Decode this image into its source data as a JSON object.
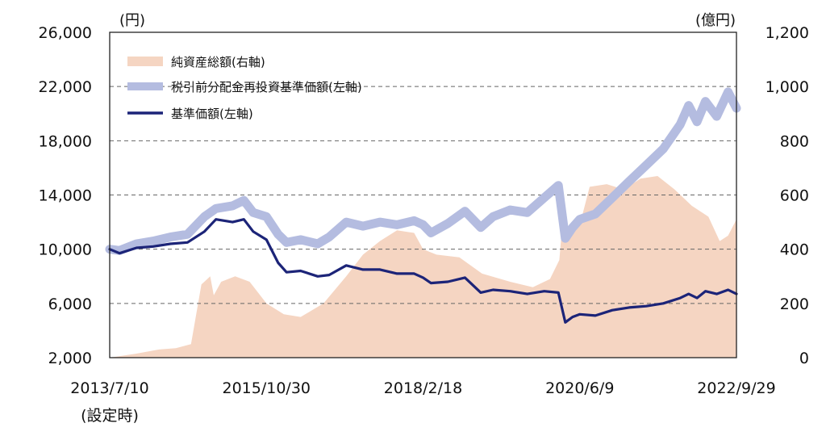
{
  "chart_data": {
    "type": "line",
    "title": "",
    "left_axis": {
      "unit": "(円)",
      "ylim": [
        2000,
        26000
      ],
      "ticks": [
        "26,000",
        "22,000",
        "18,000",
        "14,000",
        "10,000",
        "6,000",
        "2,000"
      ],
      "tick_values": [
        26000,
        22000,
        18000,
        14000,
        10000,
        6000,
        2000
      ]
    },
    "right_axis": {
      "unit": "(億円)",
      "ylim": [
        0,
        1200
      ],
      "ticks": [
        "1,200",
        "1,000",
        "800",
        "600",
        "400",
        "200",
        "0"
      ],
      "tick_values": [
        1200,
        1000,
        800,
        600,
        400,
        200,
        0
      ]
    },
    "x_axis": {
      "range": [
        "2013-07-10",
        "2022-09-29"
      ],
      "ticks": [
        {
          "date": "2013-07-10",
          "label": "2013/7/10",
          "sublabel": "(設定時)"
        },
        {
          "date": "2015-10-30",
          "label": "2015/10/30",
          "sublabel": ""
        },
        {
          "date": "2018-02-18",
          "label": "2018/2/18",
          "sublabel": ""
        },
        {
          "date": "2020-06-09",
          "label": "2020/6/9",
          "sublabel": ""
        },
        {
          "date": "2022-09-29",
          "label": "2022/9/29",
          "sublabel": ""
        }
      ]
    },
    "grid": "horizontal-dashed",
    "legend_placement": "top-left",
    "series": [
      {
        "name": "純資産総額(右軸)",
        "type": "area",
        "axis": "right",
        "color": "#f5d5c2",
        "points": [
          [
            "2013-07-10",
            0
          ],
          [
            "2013-12-01",
            15
          ],
          [
            "2014-04-01",
            30
          ],
          [
            "2014-07-01",
            35
          ],
          [
            "2014-09-20",
            50
          ],
          [
            "2014-11-15",
            270
          ],
          [
            "2015-01-01",
            300
          ],
          [
            "2015-01-20",
            230
          ],
          [
            "2015-03-01",
            280
          ],
          [
            "2015-05-15",
            300
          ],
          [
            "2015-08-01",
            280
          ],
          [
            "2015-10-30",
            200
          ],
          [
            "2016-02-01",
            160
          ],
          [
            "2016-05-01",
            150
          ],
          [
            "2016-09-01",
            200
          ],
          [
            "2017-01-01",
            300
          ],
          [
            "2017-04-01",
            380
          ],
          [
            "2017-07-01",
            430
          ],
          [
            "2017-10-01",
            470
          ],
          [
            "2018-01-01",
            460
          ],
          [
            "2018-02-18",
            400
          ],
          [
            "2018-05-01",
            380
          ],
          [
            "2018-09-01",
            370
          ],
          [
            "2019-01-01",
            310
          ],
          [
            "2019-06-01",
            280
          ],
          [
            "2019-10-01",
            260
          ],
          [
            "2020-01-01",
            290
          ],
          [
            "2020-02-20",
            360
          ],
          [
            "2020-03-15",
            550
          ],
          [
            "2020-04-01",
            480
          ],
          [
            "2020-05-15",
            470
          ],
          [
            "2020-06-09",
            490
          ],
          [
            "2020-08-01",
            630
          ],
          [
            "2020-11-01",
            640
          ],
          [
            "2021-02-01",
            620
          ],
          [
            "2021-05-01",
            660
          ],
          [
            "2021-08-01",
            670
          ],
          [
            "2021-11-01",
            620
          ],
          [
            "2022-02-01",
            560
          ],
          [
            "2022-05-01",
            520
          ],
          [
            "2022-07-01",
            430
          ],
          [
            "2022-08-15",
            450
          ],
          [
            "2022-09-29",
            510
          ]
        ]
      },
      {
        "name": "税引前分配金再投資基準価額(左軸)",
        "type": "line",
        "axis": "left",
        "color": "#b4bce0",
        "points": [
          [
            "2013-07-10",
            10000
          ],
          [
            "2013-09-01",
            9900
          ],
          [
            "2013-12-01",
            10400
          ],
          [
            "2014-03-01",
            10600
          ],
          [
            "2014-06-01",
            10900
          ],
          [
            "2014-09-01",
            11100
          ],
          [
            "2014-12-01",
            12400
          ],
          [
            "2015-02-01",
            13000
          ],
          [
            "2015-05-01",
            13200
          ],
          [
            "2015-07-01",
            13600
          ],
          [
            "2015-08-20",
            12700
          ],
          [
            "2015-10-30",
            12400
          ],
          [
            "2016-01-01",
            11100
          ],
          [
            "2016-02-15",
            10500
          ],
          [
            "2016-05-01",
            10700
          ],
          [
            "2016-08-01",
            10400
          ],
          [
            "2016-10-01",
            10900
          ],
          [
            "2017-01-01",
            12000
          ],
          [
            "2017-04-01",
            11700
          ],
          [
            "2017-07-01",
            12000
          ],
          [
            "2017-10-01",
            11800
          ],
          [
            "2018-01-01",
            12100
          ],
          [
            "2018-02-18",
            11800
          ],
          [
            "2018-04-01",
            11200
          ],
          [
            "2018-07-01",
            11900
          ],
          [
            "2018-10-01",
            12800
          ],
          [
            "2018-12-25",
            11600
          ],
          [
            "2019-03-01",
            12400
          ],
          [
            "2019-06-01",
            12900
          ],
          [
            "2019-09-01",
            12700
          ],
          [
            "2019-12-01",
            13800
          ],
          [
            "2020-02-15",
            14700
          ],
          [
            "2020-03-23",
            10800
          ],
          [
            "2020-05-01",
            11600
          ],
          [
            "2020-06-09",
            12200
          ],
          [
            "2020-09-01",
            12600
          ],
          [
            "2020-12-01",
            13800
          ],
          [
            "2021-03-01",
            15000
          ],
          [
            "2021-06-01",
            16200
          ],
          [
            "2021-09-01",
            17400
          ],
          [
            "2021-12-01",
            19200
          ],
          [
            "2022-01-15",
            20600
          ],
          [
            "2022-03-01",
            19400
          ],
          [
            "2022-04-15",
            20900
          ],
          [
            "2022-06-15",
            19800
          ],
          [
            "2022-08-15",
            21600
          ],
          [
            "2022-09-29",
            20400
          ]
        ]
      },
      {
        "name": "基準価額(左軸)",
        "type": "line",
        "axis": "left",
        "color": "#1c2478",
        "points": [
          [
            "2013-07-10",
            10000
          ],
          [
            "2013-09-01",
            9700
          ],
          [
            "2013-12-01",
            10100
          ],
          [
            "2014-03-01",
            10200
          ],
          [
            "2014-06-01",
            10400
          ],
          [
            "2014-09-01",
            10500
          ],
          [
            "2014-12-01",
            11300
          ],
          [
            "2015-02-01",
            12200
          ],
          [
            "2015-05-01",
            12000
          ],
          [
            "2015-07-01",
            12200
          ],
          [
            "2015-08-20",
            11300
          ],
          [
            "2015-10-30",
            10700
          ],
          [
            "2016-01-01",
            9000
          ],
          [
            "2016-02-15",
            8300
          ],
          [
            "2016-05-01",
            8400
          ],
          [
            "2016-08-01",
            8000
          ],
          [
            "2016-10-01",
            8100
          ],
          [
            "2017-01-01",
            8800
          ],
          [
            "2017-04-01",
            8500
          ],
          [
            "2017-07-01",
            8500
          ],
          [
            "2017-10-01",
            8200
          ],
          [
            "2018-01-01",
            8200
          ],
          [
            "2018-02-18",
            7900
          ],
          [
            "2018-04-01",
            7500
          ],
          [
            "2018-07-01",
            7600
          ],
          [
            "2018-10-01",
            7900
          ],
          [
            "2018-12-25",
            6800
          ],
          [
            "2019-03-01",
            7000
          ],
          [
            "2019-06-01",
            6900
          ],
          [
            "2019-09-01",
            6700
          ],
          [
            "2019-12-01",
            6900
          ],
          [
            "2020-02-15",
            6800
          ],
          [
            "2020-03-23",
            4600
          ],
          [
            "2020-05-01",
            5000
          ],
          [
            "2020-06-09",
            5200
          ],
          [
            "2020-09-01",
            5100
          ],
          [
            "2020-12-01",
            5500
          ],
          [
            "2021-03-01",
            5700
          ],
          [
            "2021-06-01",
            5800
          ],
          [
            "2021-09-01",
            6000
          ],
          [
            "2021-12-01",
            6400
          ],
          [
            "2022-01-15",
            6700
          ],
          [
            "2022-03-01",
            6400
          ],
          [
            "2022-04-15",
            6900
          ],
          [
            "2022-06-15",
            6700
          ],
          [
            "2022-08-15",
            7000
          ],
          [
            "2022-09-29",
            6700
          ]
        ]
      }
    ]
  }
}
